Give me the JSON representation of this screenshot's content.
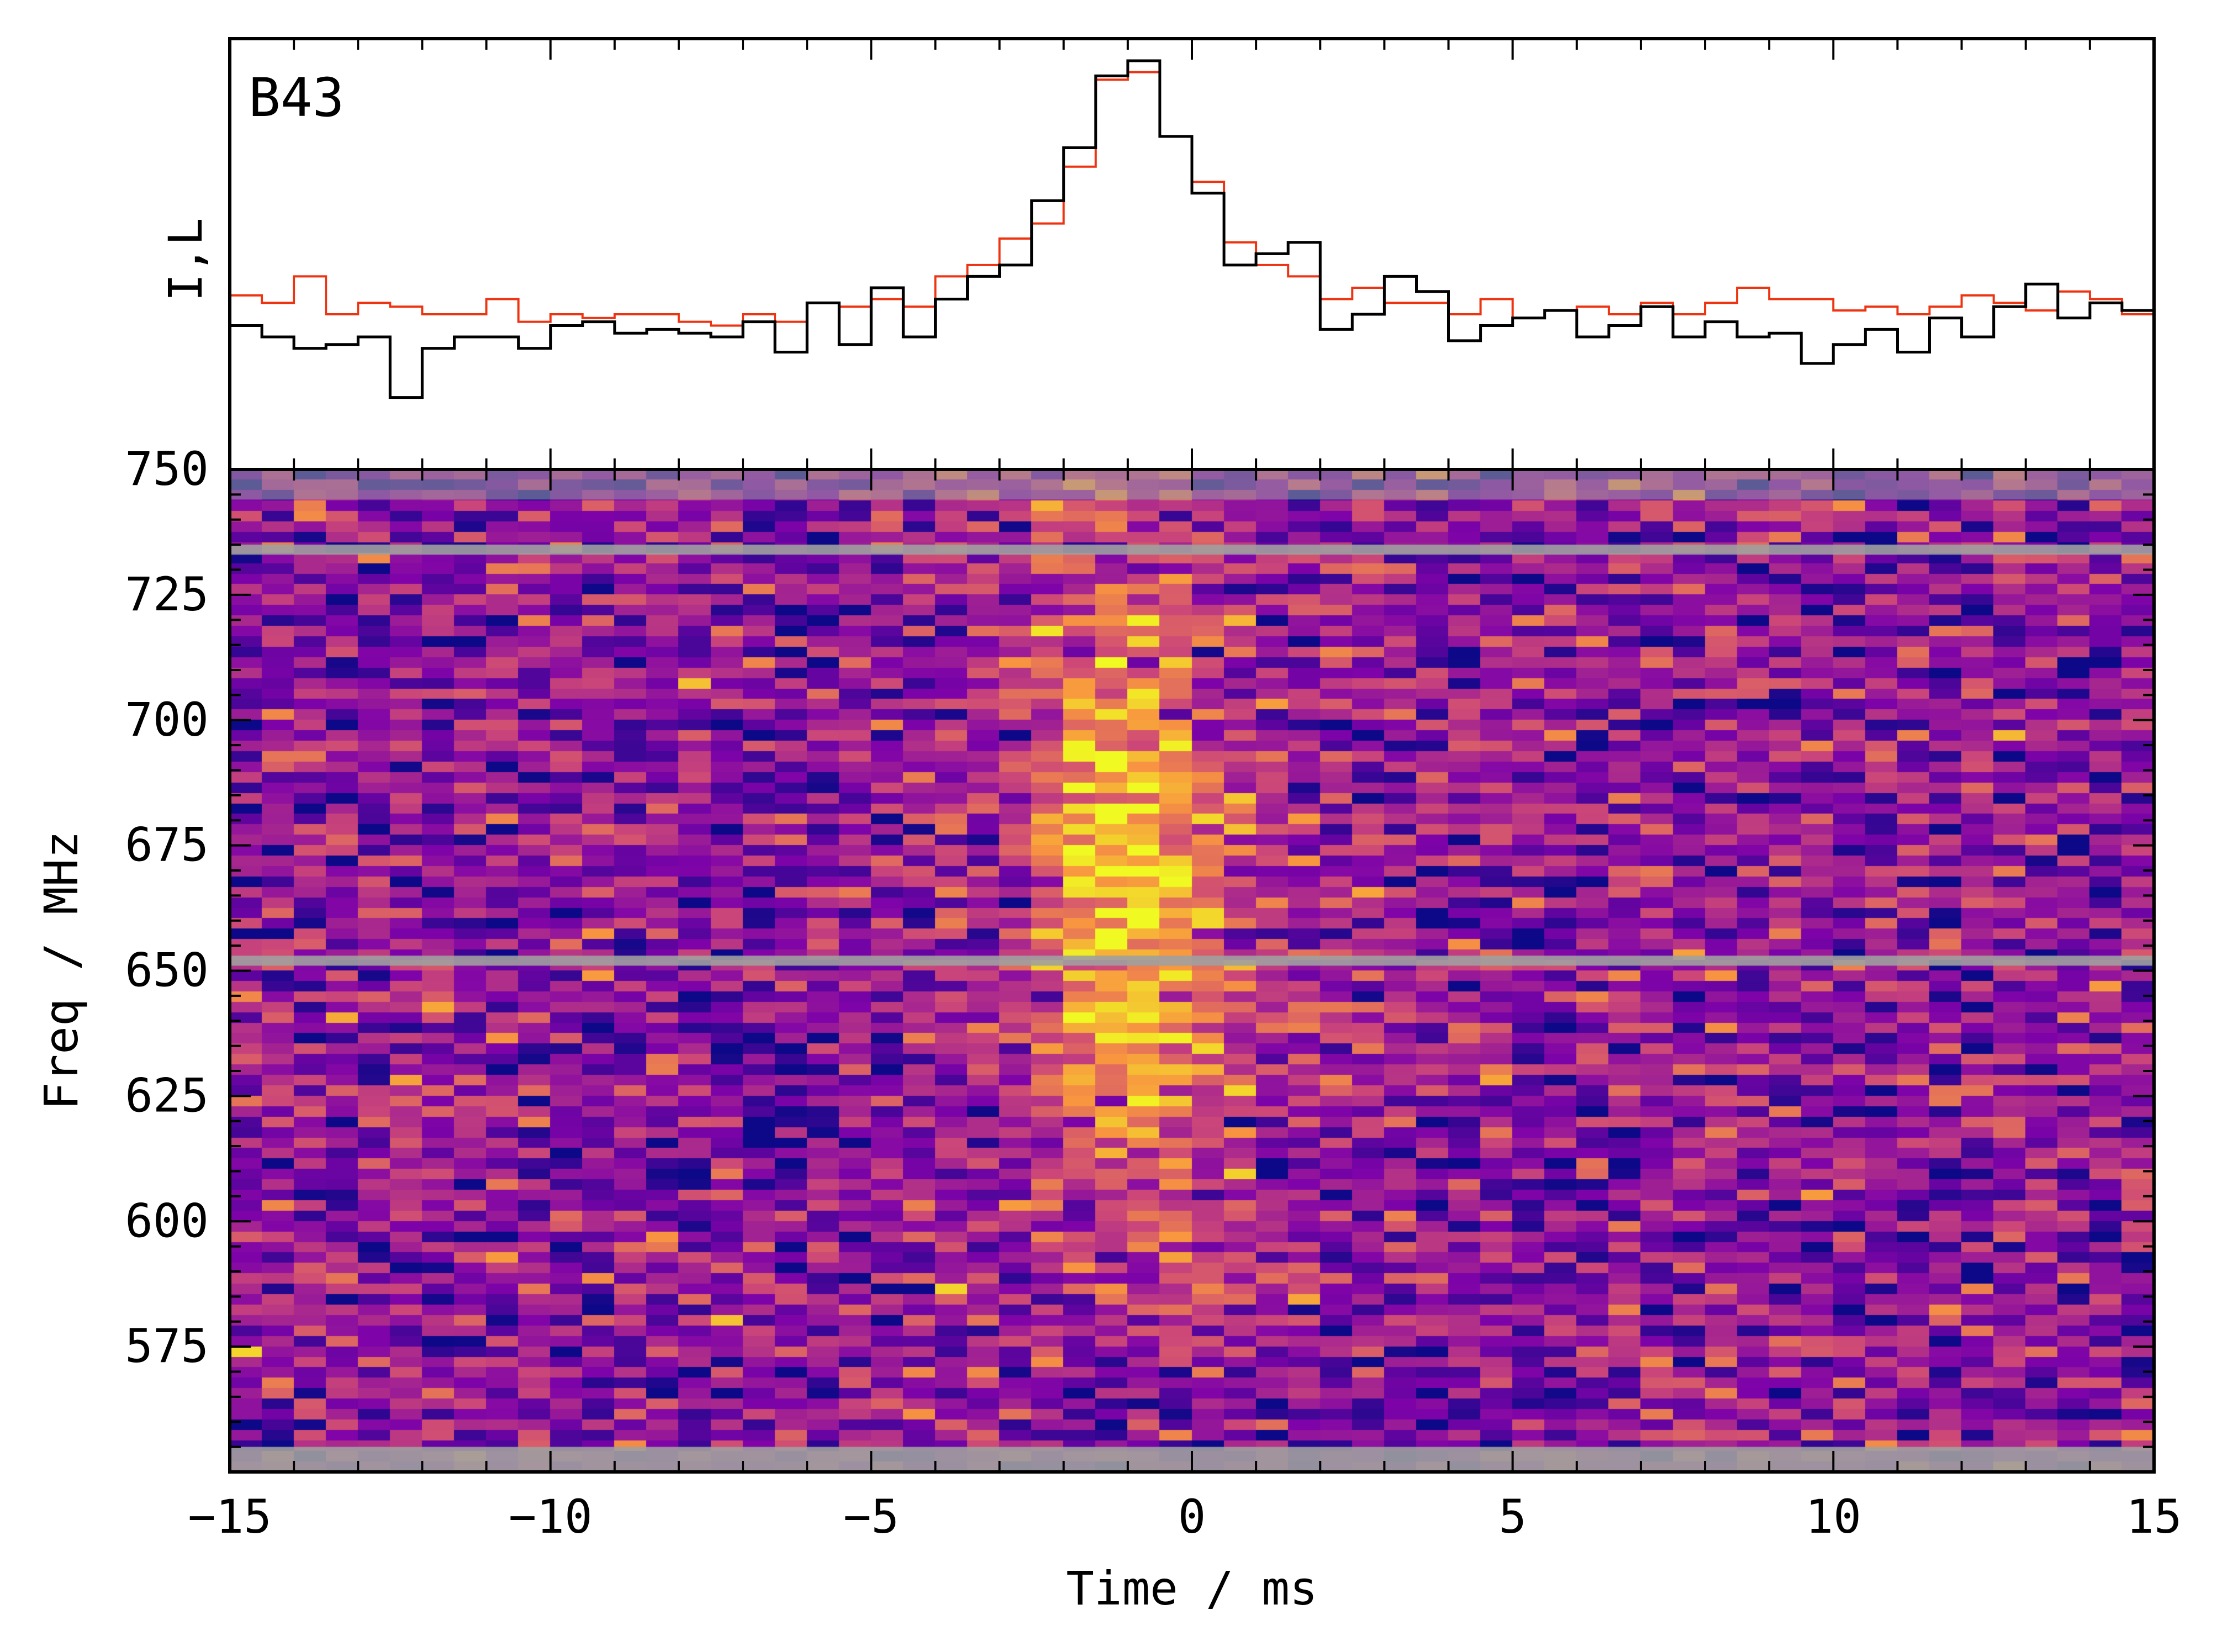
{
  "chart_data": [
    {
      "type": "line",
      "panel": "profile",
      "label": "B43",
      "ylabel": "I,L",
      "xlim": [
        -15,
        15
      ],
      "ylim": [
        0,
        1
      ],
      "series": [
        {
          "name": "I",
          "color": "#000000",
          "x": [
            -15,
            -14.5,
            -14,
            -13.5,
            -13,
            -12.5,
            -12,
            -11.5,
            -11,
            -10.5,
            -10,
            -9.5,
            -9,
            -8.5,
            -8,
            -7.5,
            -7,
            -6.5,
            -6,
            -5.5,
            -5,
            -4.5,
            -4,
            -3.5,
            -3,
            -2.5,
            -2,
            -1.5,
            -1,
            -0.5,
            0,
            0.5,
            1,
            1.5,
            2,
            2.5,
            3,
            3.5,
            4,
            4.5,
            5,
            5.5,
            6,
            6.5,
            7,
            7.5,
            8,
            8.5,
            9,
            9.5,
            10,
            10.5,
            11,
            11.5,
            12,
            12.5,
            13,
            13.5,
            14,
            14.5
          ],
          "values": [
            0.3,
            0.27,
            0.24,
            0.25,
            0.27,
            0.11,
            0.24,
            0.27,
            0.27,
            0.24,
            0.3,
            0.31,
            0.28,
            0.29,
            0.28,
            0.27,
            0.31,
            0.23,
            0.36,
            0.25,
            0.4,
            0.27,
            0.37,
            0.43,
            0.46,
            0.63,
            0.77,
            0.96,
            1.0,
            0.8,
            0.65,
            0.46,
            0.49,
            0.52,
            0.29,
            0.33,
            0.43,
            0.39,
            0.26,
            0.3,
            0.32,
            0.34,
            0.27,
            0.3,
            0.35,
            0.27,
            0.31,
            0.27,
            0.28,
            0.2,
            0.25,
            0.29,
            0.23,
            0.32,
            0.27,
            0.35,
            0.41,
            0.32,
            0.36,
            0.34
          ]
        },
        {
          "name": "L",
          "color": "#ee3311",
          "x": [
            -15,
            -14.5,
            -14,
            -13.5,
            -13,
            -12.5,
            -12,
            -11.5,
            -11,
            -10.5,
            -10,
            -9.5,
            -9,
            -8.5,
            -8,
            -7.5,
            -7,
            -6.5,
            -6,
            -5.5,
            -5,
            -4.5,
            -4,
            -3.5,
            -3,
            -2.5,
            -2,
            -1.5,
            -1,
            -0.5,
            0,
            0.5,
            1,
            1.5,
            2,
            2.5,
            3,
            3.5,
            4,
            4.5,
            5,
            5.5,
            6,
            6.5,
            7,
            7.5,
            8,
            8.5,
            9,
            9.5,
            10,
            10.5,
            11,
            11.5,
            12,
            12.5,
            13,
            13.5,
            14,
            14.5
          ],
          "values": [
            0.38,
            0.36,
            0.43,
            0.33,
            0.36,
            0.35,
            0.33,
            0.33,
            0.37,
            0.31,
            0.33,
            0.32,
            0.33,
            0.33,
            0.31,
            0.3,
            0.33,
            0.31,
            0.36,
            0.35,
            0.37,
            0.35,
            0.43,
            0.46,
            0.53,
            0.57,
            0.72,
            0.95,
            0.97,
            0.8,
            0.68,
            0.52,
            0.46,
            0.43,
            0.37,
            0.4,
            0.36,
            0.36,
            0.33,
            0.37,
            0.32,
            0.34,
            0.35,
            0.33,
            0.36,
            0.33,
            0.36,
            0.4,
            0.37,
            0.37,
            0.34,
            0.35,
            0.33,
            0.35,
            0.38,
            0.36,
            0.34,
            0.39,
            0.37,
            0.33
          ]
        }
      ]
    },
    {
      "type": "heatmap",
      "panel": "dynamic_spectrum",
      "xlabel": "Time / ms",
      "ylabel": "Freq / MHz",
      "xlim": [
        -15,
        15
      ],
      "ylim": [
        550,
        750
      ],
      "x_ticks": [
        "−15",
        "−10",
        "−5",
        "0",
        "5",
        "10",
        "15"
      ],
      "x_tick_values": [
        -15,
        -10,
        -5,
        0,
        5,
        10,
        15
      ],
      "y_ticks": [
        "575",
        "600",
        "625",
        "650",
        "675",
        "700",
        "725",
        "750"
      ],
      "y_tick_values": [
        575,
        600,
        625,
        650,
        675,
        700,
        725,
        750
      ],
      "colormap": "plasma",
      "n_time_bins": 60,
      "n_channels": 96,
      "masked_channels_mhz": [
        [
          744,
          750
        ],
        [
          733,
          735
        ],
        [
          651,
          653
        ],
        [
          550,
          555
        ]
      ],
      "mask_color": "#a0a0a0",
      "burst": {
        "center_ms": -1.2,
        "low_freq_center_ms": -0.5,
        "width_ms": 1.1,
        "tail_ms": 0.9,
        "freq_center_mhz": 665,
        "freq_sigma_mhz": 45
      },
      "noise_seed": 43
    }
  ]
}
